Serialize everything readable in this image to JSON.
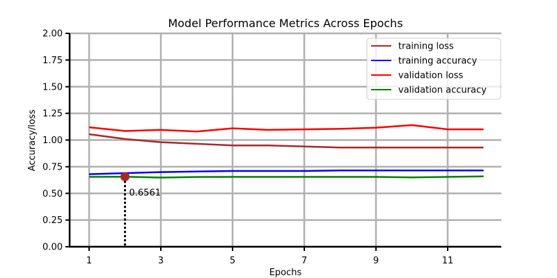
{
  "chart_data": {
    "type": "line",
    "title": "Model Performance Metrics Across Epochs",
    "xlabel": "Epochs",
    "ylabel": "Accuracy/loss",
    "x": [
      1,
      2,
      3,
      4,
      5,
      6,
      7,
      8,
      9,
      10,
      11,
      12
    ],
    "xticks": [
      1,
      3,
      5,
      7,
      9,
      11
    ],
    "yticks": [
      "0.00",
      "0.25",
      "0.50",
      "0.75",
      "1.00",
      "1.25",
      "1.50",
      "1.75",
      "2.00"
    ],
    "ylim": [
      0,
      2.0
    ],
    "xlim": [
      0.45,
      12.6
    ],
    "grid": true,
    "legend_position": "upper right",
    "series": [
      {
        "name": "training loss",
        "color": "#a52a2a",
        "values": [
          1.055,
          1.01,
          0.98,
          0.965,
          0.95,
          0.95,
          0.94,
          0.93,
          0.93,
          0.93,
          0.93,
          0.93
        ]
      },
      {
        "name": "training accuracy",
        "color": "#0000ff",
        "values": [
          0.68,
          0.69,
          0.7,
          0.705,
          0.71,
          0.71,
          0.71,
          0.715,
          0.715,
          0.715,
          0.715,
          0.715
        ]
      },
      {
        "name": "validation loss",
        "color": "#ff0000",
        "values": [
          1.12,
          1.085,
          1.095,
          1.08,
          1.11,
          1.095,
          1.1,
          1.105,
          1.115,
          1.14,
          1.1,
          1.1
        ]
      },
      {
        "name": "validation accuracy",
        "color": "#008000",
        "values": [
          0.655,
          0.656,
          0.648,
          0.654,
          0.655,
          0.655,
          0.655,
          0.655,
          0.655,
          0.65,
          0.655,
          0.66
        ]
      }
    ],
    "annotation": {
      "x": 2,
      "y": 0.6561,
      "text": "0.6561",
      "marker_color": "#a52a2a"
    }
  }
}
